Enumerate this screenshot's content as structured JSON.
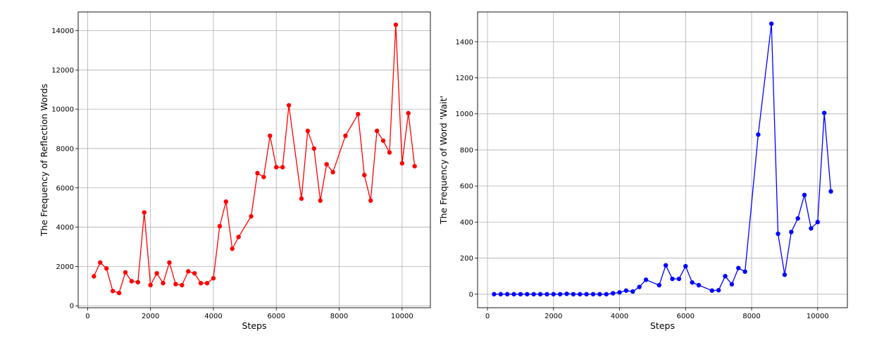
{
  "chart_data": [
    {
      "type": "line",
      "xlabel": "Steps",
      "ylabel": "The Frequency of Reflection Words",
      "xlim": [
        -300,
        10900
      ],
      "ylim": [
        -100,
        14950
      ],
      "xticks": [
        0,
        2000,
        4000,
        6000,
        8000,
        10000
      ],
      "yticks": [
        0,
        2000,
        4000,
        6000,
        8000,
        10000,
        12000,
        14000
      ],
      "grid": true,
      "legend": "none",
      "series": [
        {
          "color": "#ff0000",
          "marker": "circle",
          "x": [
            200,
            400,
            600,
            800,
            1000,
            1200,
            1400,
            1600,
            1800,
            2000,
            2200,
            2400,
            2600,
            2800,
            3000,
            3200,
            3400,
            3600,
            3800,
            4000,
            4200,
            4400,
            4600,
            4800,
            5200,
            5400,
            5600,
            5800,
            6000,
            6200,
            6400,
            6800,
            7000,
            7200,
            7400,
            7600,
            7800,
            8200,
            8600,
            8800,
            9000,
            9200,
            9400,
            9600,
            9800,
            10000,
            10200,
            10400
          ],
          "y": [
            1500,
            2200,
            1900,
            750,
            650,
            1700,
            1250,
            1200,
            4750,
            1050,
            1650,
            1150,
            2200,
            1100,
            1050,
            1750,
            1650,
            1150,
            1150,
            1400,
            4050,
            5300,
            2900,
            3500,
            4550,
            6750,
            6550,
            8650,
            7050,
            7050,
            10200,
            5450,
            8900,
            8000,
            5350,
            7200,
            6800,
            8650,
            9750,
            6650,
            5350,
            8900,
            8400,
            7800,
            14300,
            7250,
            9800,
            7100
          ]
        }
      ]
    },
    {
      "type": "line",
      "xlabel": "Steps",
      "ylabel": "The Frequency of Word 'Wait'",
      "xlim": [
        -300,
        10900
      ],
      "ylim": [
        -75,
        1565
      ],
      "xticks": [
        0,
        2000,
        4000,
        6000,
        8000,
        10000
      ],
      "yticks": [
        0,
        200,
        400,
        600,
        800,
        1000,
        1200,
        1400
      ],
      "grid": true,
      "legend": "none",
      "series": [
        {
          "color": "#0000ff",
          "marker": "circle",
          "x": [
            200,
            400,
            600,
            800,
            1000,
            1200,
            1400,
            1600,
            1800,
            2000,
            2200,
            2400,
            2600,
            2800,
            3000,
            3200,
            3400,
            3600,
            3800,
            4000,
            4200,
            4400,
            4600,
            4800,
            5200,
            5400,
            5600,
            5800,
            6000,
            6200,
            6400,
            6800,
            7000,
            7200,
            7400,
            7600,
            7800,
            8200,
            8600,
            8800,
            9000,
            9200,
            9400,
            9600,
            9800,
            10000,
            10200,
            10400
          ],
          "y": [
            0,
            0,
            0,
            0,
            0,
            0,
            0,
            0,
            0,
            0,
            0,
            2,
            0,
            0,
            0,
            0,
            0,
            0,
            5,
            10,
            20,
            15,
            40,
            80,
            50,
            160,
            85,
            85,
            155,
            65,
            50,
            20,
            22,
            100,
            55,
            145,
            125,
            885,
            1500,
            335,
            108,
            345,
            420,
            550,
            365,
            400,
            1005,
            570
          ]
        }
      ]
    }
  ]
}
